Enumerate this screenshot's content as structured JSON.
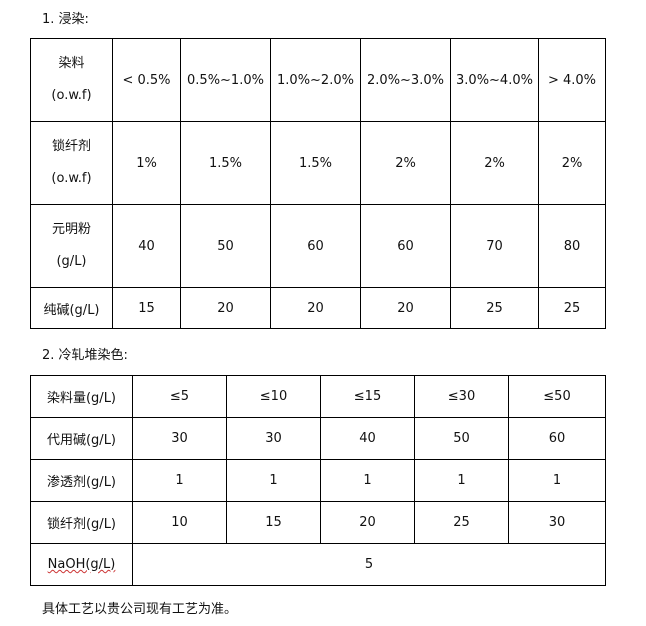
{
  "section1": {
    "heading": "1. 浸染:",
    "header_row": {
      "label_line1": "染料",
      "label_line2": "(o.w.f)",
      "cells": [
        "< 0.5%",
        "0.5%~1.0%",
        "1.0%~2.0%",
        "2.0%~3.0%",
        "3.0%~4.0%",
        "> 4.0%"
      ]
    },
    "rows": [
      {
        "label_line1": "锁纤剂",
        "label_line2": "(o.w.f)",
        "cells": [
          "1%",
          "1.5%",
          "1.5%",
          "2%",
          "2%",
          "2%"
        ]
      },
      {
        "label_line1": "元明粉",
        "label_line2": "(g/L)",
        "cells": [
          "40",
          "50",
          "60",
          "60",
          "70",
          "80"
        ]
      },
      {
        "label_line1": "纯碱(g/L)",
        "cells": [
          "15",
          "20",
          "20",
          "20",
          "25",
          "25"
        ]
      }
    ]
  },
  "section2": {
    "heading": "2. 冷轧堆染色:",
    "rows": [
      {
        "label": "染料量(g/L)",
        "cells": [
          "≤5",
          "≤10",
          "≤15",
          "≤30",
          "≤50"
        ]
      },
      {
        "label": "代用碱(g/L)",
        "cells": [
          "30",
          "30",
          "40",
          "50",
          "60"
        ]
      },
      {
        "label": "渗透剂(g/L)",
        "cells": [
          "1",
          "1",
          "1",
          "1",
          "1"
        ]
      },
      {
        "label": "锁纤剂(g/L)",
        "cells": [
          "10",
          "15",
          "20",
          "25",
          "30"
        ]
      },
      {
        "label": "NaOH(g/L)",
        "merged_value": "5"
      }
    ]
  },
  "footer": "具体工艺以贵公司现有工艺为准。"
}
